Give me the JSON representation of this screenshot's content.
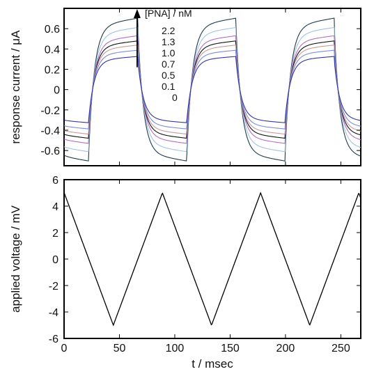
{
  "chart_data": [
    {
      "type": "line",
      "ylabel": "response current / μA",
      "xlim": [
        0,
        268
      ],
      "ylim": [
        -0.75,
        0.8
      ],
      "xticks": [
        "0",
        "50",
        "100",
        "150",
        "200",
        "250"
      ],
      "yticks": [
        {
          "v": 0.6,
          "label": "0.6"
        },
        {
          "v": 0.4,
          "label": "0.4"
        },
        {
          "v": 0.2,
          "label": "0.2"
        },
        {
          "v": 0,
          "label": "0"
        },
        {
          "v": -0.2,
          "label": "-0.2"
        },
        {
          "v": -0.4,
          "label": "-0.4"
        },
        {
          "v": -0.6,
          "label": "-0.6"
        }
      ],
      "grid": false,
      "legend_title": "[PNA] / nM",
      "arrow_x": 66,
      "series": [
        {
          "name": "2.2",
          "amp": 0.69,
          "color": "#1e3a4a"
        },
        {
          "name": "1.3",
          "amp": 0.6,
          "color": "#9fc3e6"
        },
        {
          "name": "1.0",
          "amp": 0.52,
          "color": "#b46cc2"
        },
        {
          "name": "0.7",
          "amp": 0.47,
          "color": "#111111"
        },
        {
          "name": "0.5",
          "amp": 0.43,
          "color": "#c79a9a"
        },
        {
          "name": "0.1",
          "amp": 0.38,
          "color": "#7b8bd9"
        },
        {
          "name": "0",
          "amp": 0.32,
          "color": "#2f35a0"
        }
      ]
    },
    {
      "type": "line",
      "xlabel": "t / msec",
      "ylabel": "applied voltage / mV",
      "xlim": [
        0,
        268
      ],
      "ylim": [
        -6,
        6
      ],
      "xticks": [
        "0",
        "50",
        "100",
        "150",
        "200",
        "250"
      ],
      "yticks": [
        "6",
        "4",
        "2",
        "0",
        "-2",
        "-4",
        "-6"
      ],
      "grid": false,
      "period": 88.7,
      "amplitude": 5,
      "color": "#000000"
    }
  ]
}
